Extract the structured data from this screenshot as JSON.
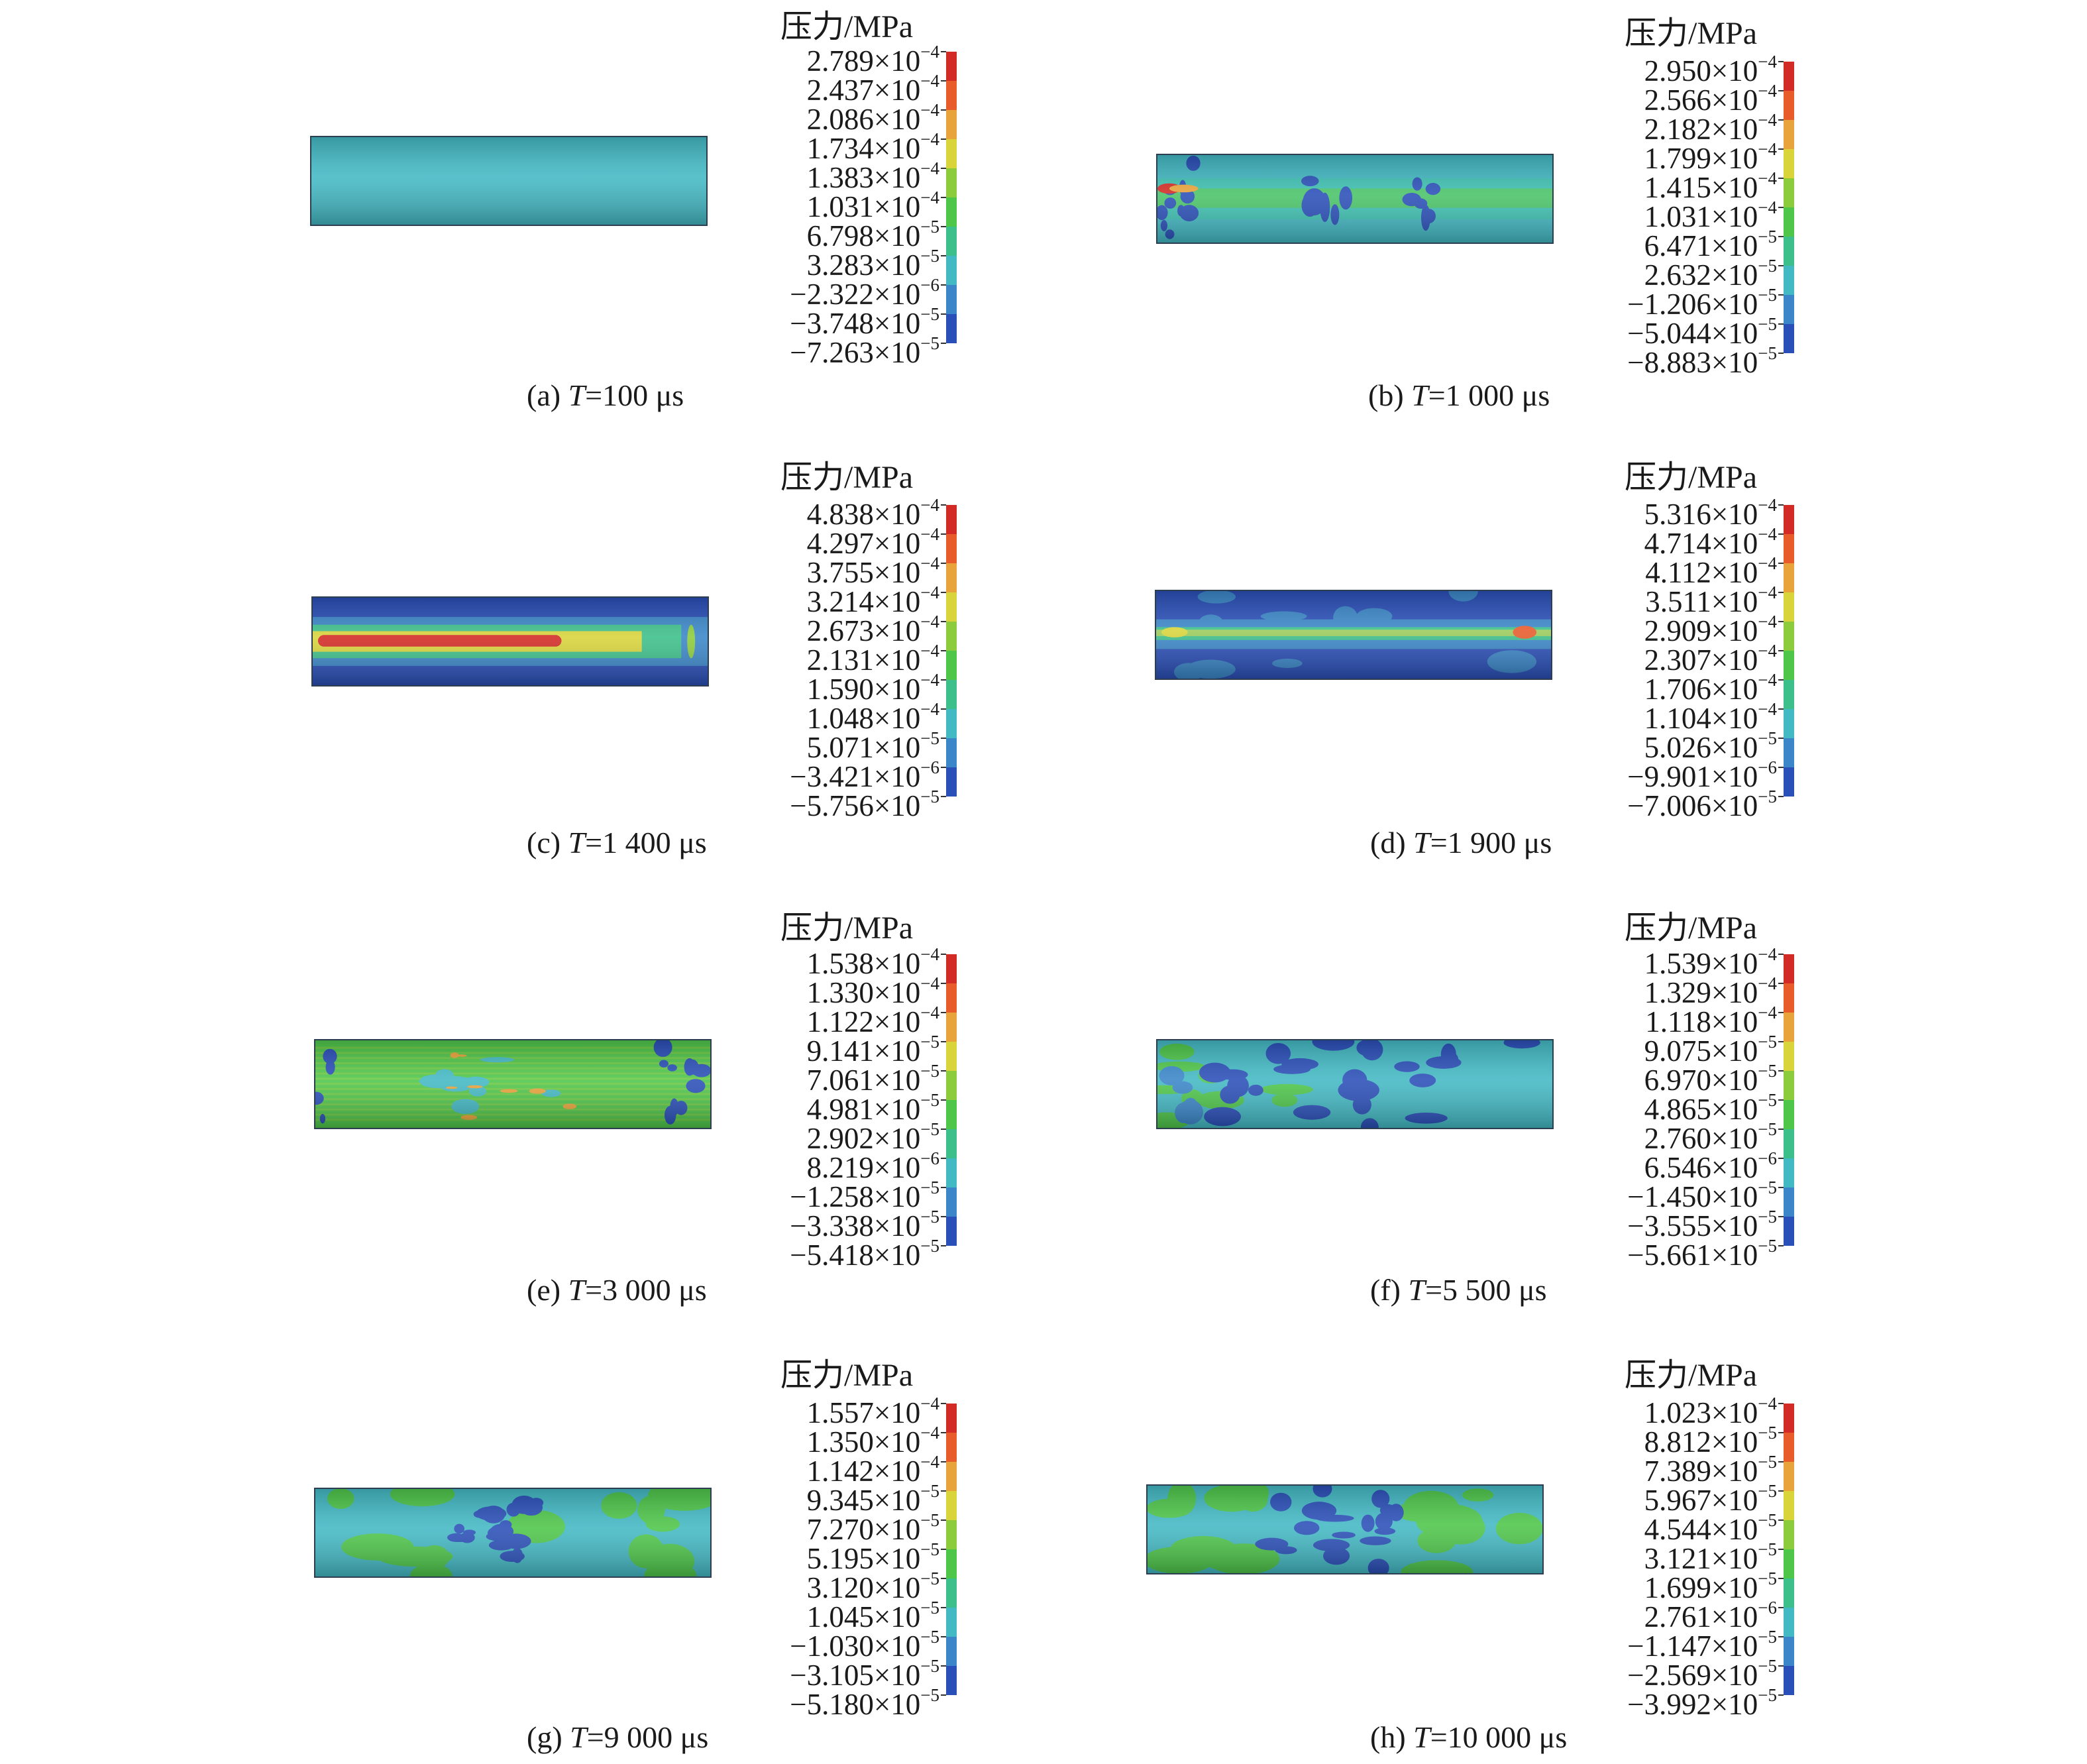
{
  "legend_title": "压力/MPa",
  "colormap": [
    "#d22a24",
    "#e85b2a",
    "#e8a33a",
    "#d8d43a",
    "#8ccc3c",
    "#4ec64a",
    "#3cbf8a",
    "#43b9c4",
    "#3a86c8",
    "#2a4fb8"
  ],
  "panels": [
    {
      "id": "a",
      "caption_prefix": "(a) ",
      "caption_var": "T",
      "caption_rest": "=100 μs",
      "pattern": "uniform",
      "labels": [
        [
          "2.789×10",
          "−4"
        ],
        [
          "2.437×10",
          "−4"
        ],
        [
          "2.086×10",
          "−4"
        ],
        [
          "1.734×10",
          "−4"
        ],
        [
          "1.383×10",
          "−4"
        ],
        [
          "1.031×10",
          "−4"
        ],
        [
          "6.798×10",
          "−5"
        ],
        [
          "3.283×10",
          "−5"
        ],
        [
          "−2.322×10",
          "−6"
        ],
        [
          "−3.748×10",
          "−5"
        ],
        [
          "−7.263×10",
          "−5"
        ]
      ]
    },
    {
      "id": "b",
      "caption_prefix": "(b) ",
      "caption_var": "T",
      "caption_rest": "=1 000 μs",
      "pattern": "b",
      "labels": [
        [
          "2.950×10",
          "−4"
        ],
        [
          "2.566×10",
          "−4"
        ],
        [
          "2.182×10",
          "−4"
        ],
        [
          "1.799×10",
          "−4"
        ],
        [
          "1.415×10",
          "−4"
        ],
        [
          "1.031×10",
          "−4"
        ],
        [
          "6.471×10",
          "−5"
        ],
        [
          "2.632×10",
          "−5"
        ],
        [
          "−1.206×10",
          "−5"
        ],
        [
          "−5.044×10",
          "−5"
        ],
        [
          "−8.883×10",
          "−5"
        ]
      ]
    },
    {
      "id": "c",
      "caption_prefix": "(c) ",
      "caption_var": "T",
      "caption_rest": "=1 400 μs",
      "pattern": "c",
      "labels": [
        [
          "4.838×10",
          "−4"
        ],
        [
          "4.297×10",
          "−4"
        ],
        [
          "3.755×10",
          "−4"
        ],
        [
          "3.214×10",
          "−4"
        ],
        [
          "2.673×10",
          "−4"
        ],
        [
          "2.131×10",
          "−4"
        ],
        [
          "1.590×10",
          "−4"
        ],
        [
          "1.048×10",
          "−4"
        ],
        [
          "5.071×10",
          "−5"
        ],
        [
          "−3.421×10",
          "−6"
        ],
        [
          "−5.756×10",
          "−5"
        ]
      ]
    },
    {
      "id": "d",
      "caption_prefix": "(d) ",
      "caption_var": "T",
      "caption_rest": "=1 900 μs",
      "pattern": "d",
      "labels": [
        [
          "5.316×10",
          "−4"
        ],
        [
          "4.714×10",
          "−4"
        ],
        [
          "4.112×10",
          "−4"
        ],
        [
          "3.511×10",
          "−4"
        ],
        [
          "2.909×10",
          "−4"
        ],
        [
          "2.307×10",
          "−4"
        ],
        [
          "1.706×10",
          "−4"
        ],
        [
          "1.104×10",
          "−4"
        ],
        [
          "5.026×10",
          "−5"
        ],
        [
          "−9.901×10",
          "−6"
        ],
        [
          "−7.006×10",
          "−5"
        ]
      ]
    },
    {
      "id": "e",
      "caption_prefix": "(e) ",
      "caption_var": "T",
      "caption_rest": "=3 000 μs",
      "pattern": "e",
      "labels": [
        [
          "1.538×10",
          "−4"
        ],
        [
          "1.330×10",
          "−4"
        ],
        [
          "1.122×10",
          "−4"
        ],
        [
          "9.141×10",
          "−5"
        ],
        [
          "7.061×10",
          "−5"
        ],
        [
          "4.981×10",
          "−5"
        ],
        [
          "2.902×10",
          "−5"
        ],
        [
          "8.219×10",
          "−6"
        ],
        [
          "−1.258×10",
          "−5"
        ],
        [
          "−3.338×10",
          "−5"
        ],
        [
          "−5.418×10",
          "−5"
        ]
      ]
    },
    {
      "id": "f",
      "caption_prefix": "(f) ",
      "caption_var": "T",
      "caption_rest": "=5 500 μs",
      "pattern": "f",
      "labels": [
        [
          "1.539×10",
          "−4"
        ],
        [
          "1.329×10",
          "−4"
        ],
        [
          "1.118×10",
          "−4"
        ],
        [
          "9.075×10",
          "−5"
        ],
        [
          "6.970×10",
          "−5"
        ],
        [
          "4.865×10",
          "−5"
        ],
        [
          "2.760×10",
          "−5"
        ],
        [
          "6.546×10",
          "−6"
        ],
        [
          "−1.450×10",
          "−5"
        ],
        [
          "−3.555×10",
          "−5"
        ],
        [
          "−5.661×10",
          "−5"
        ]
      ]
    },
    {
      "id": "g",
      "caption_prefix": "(g) ",
      "caption_var": "T",
      "caption_rest": "=9 000 μs",
      "pattern": "g",
      "labels": [
        [
          "1.557×10",
          "−4"
        ],
        [
          "1.350×10",
          "−4"
        ],
        [
          "1.142×10",
          "−4"
        ],
        [
          "9.345×10",
          "−5"
        ],
        [
          "7.270×10",
          "−5"
        ],
        [
          "5.195×10",
          "−5"
        ],
        [
          "3.120×10",
          "−5"
        ],
        [
          "1.045×10",
          "−5"
        ],
        [
          "−1.030×10",
          "−5"
        ],
        [
          "−3.105×10",
          "−5"
        ],
        [
          "−5.180×10",
          "−5"
        ]
      ]
    },
    {
      "id": "h",
      "caption_prefix": "(h) ",
      "caption_var": "T",
      "caption_rest": "=10 000 μs",
      "pattern": "h",
      "labels": [
        [
          "1.023×10",
          "−4"
        ],
        [
          "8.812×10",
          "−5"
        ],
        [
          "7.389×10",
          "−5"
        ],
        [
          "5.967×10",
          "−5"
        ],
        [
          "4.544×10",
          "−5"
        ],
        [
          "3.121×10",
          "−5"
        ],
        [
          "1.699×10",
          "−5"
        ],
        [
          "2.761×10",
          "−6"
        ],
        [
          "−1.147×10",
          "−5"
        ],
        [
          "−2.569×10",
          "−5"
        ],
        [
          "−3.992×10",
          "−5"
        ]
      ]
    }
  ]
}
